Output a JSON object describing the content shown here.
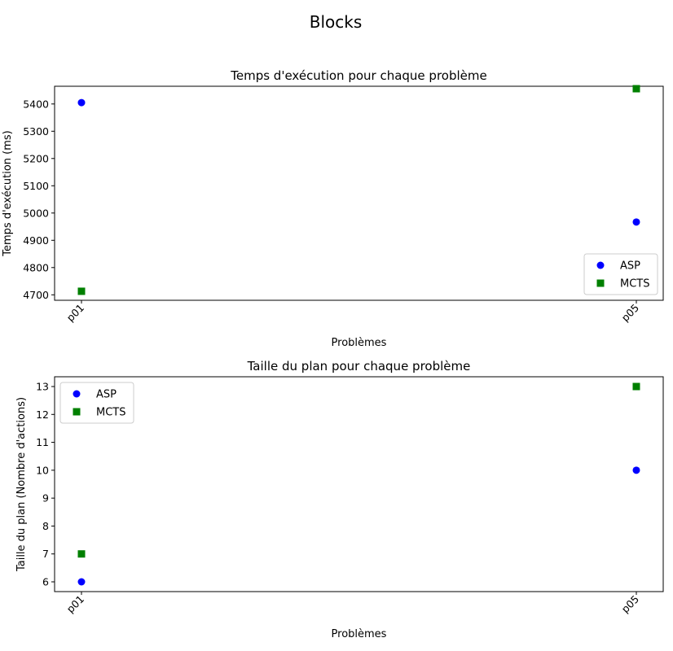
{
  "figure": {
    "title": "Blocks"
  },
  "chart_data": [
    {
      "type": "scatter",
      "title": "Temps d'exécution pour chaque problème",
      "xlabel": "Problèmes",
      "ylabel": "Temps d'exécution (ms)",
      "categories": [
        "p01",
        "p05"
      ],
      "ylim": [
        4680,
        5465
      ],
      "yticks": [
        4700,
        4800,
        4900,
        5000,
        5100,
        5200,
        5300,
        5400
      ],
      "grid": false,
      "legend_position": "lower right",
      "series": [
        {
          "name": "ASP",
          "marker": "circle",
          "color": "#0000ff",
          "values": [
            5405,
            4967
          ]
        },
        {
          "name": "MCTS",
          "marker": "square",
          "color": "#008000",
          "values": [
            4713,
            5456
          ]
        }
      ]
    },
    {
      "type": "scatter",
      "title": "Taille du plan pour chaque problème",
      "xlabel": "Problèmes",
      "ylabel": "Taille du plan (Nombre d'actions)",
      "categories": [
        "p01",
        "p05"
      ],
      "ylim": [
        5.65,
        13.35
      ],
      "yticks": [
        6,
        7,
        8,
        9,
        10,
        11,
        12,
        13
      ],
      "grid": false,
      "legend_position": "upper left",
      "series": [
        {
          "name": "ASP",
          "marker": "circle",
          "color": "#0000ff",
          "values": [
            6,
            10
          ]
        },
        {
          "name": "MCTS",
          "marker": "square",
          "color": "#008000",
          "values": [
            7,
            13
          ]
        }
      ]
    }
  ]
}
